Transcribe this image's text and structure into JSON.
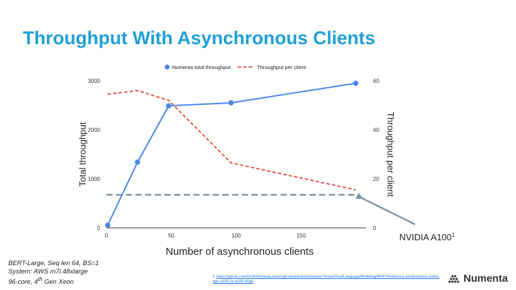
{
  "slide": {
    "title": "Throughput With Asynchronous Clients",
    "footnote_lines": [
      "BERT-Large, Seq len 64, BS=1",
      "System: AWS m7i.48xlarge",
      "96-core, 4",
      "th",
      " Gen Xeon"
    ],
    "reference_number": "1",
    "reference_url": "https://github.com/NVIDIA/DeepLearningExamples/tree/master/TensorFlow/LanguageModeling/BERT#inference-performance-nvidia-dgx-a100-1x-a100-40gb",
    "brand_name": "Numenta",
    "colors": {
      "title": "#1f9fd6",
      "series_total": "#4a86e8",
      "series_per_client": "#dd4b39",
      "reference_line": "#7f96a8"
    }
  },
  "chart_data": {
    "type": "line",
    "xlabel": "Number of asynchronous clients",
    "ylabel_left": "Total throughput",
    "ylabel_right": "Throughput per client",
    "xlim": [
      0,
      200
    ],
    "ylim_left": [
      0,
      3000
    ],
    "ylim_right": [
      0,
      60
    ],
    "x_ticks": [
      0,
      50,
      100,
      150
    ],
    "y_ticks_left": [
      0,
      1000,
      2000,
      3000
    ],
    "y_ticks_right": [
      0,
      20,
      40,
      60
    ],
    "grid": false,
    "legend_position": "top-center",
    "series": [
      {
        "name": "Numenta total throughput",
        "axis": "left",
        "style": "solid-with-markers",
        "x": [
          1,
          24,
          48,
          96,
          192
        ],
        "y": [
          55,
          1340,
          2490,
          2550,
          2950
        ]
      },
      {
        "name": "Throughput per client",
        "axis": "right",
        "style": "dashed",
        "x": [
          1,
          24,
          48,
          96,
          192
        ],
        "y": [
          54.5,
          56,
          52,
          26.5,
          15.5
        ]
      }
    ],
    "reference_line": {
      "axis": "left",
      "y": 675,
      "x_range": [
        0,
        192
      ]
    },
    "annotation": {
      "text": "NVIDIA A100",
      "superscript": "1"
    }
  }
}
